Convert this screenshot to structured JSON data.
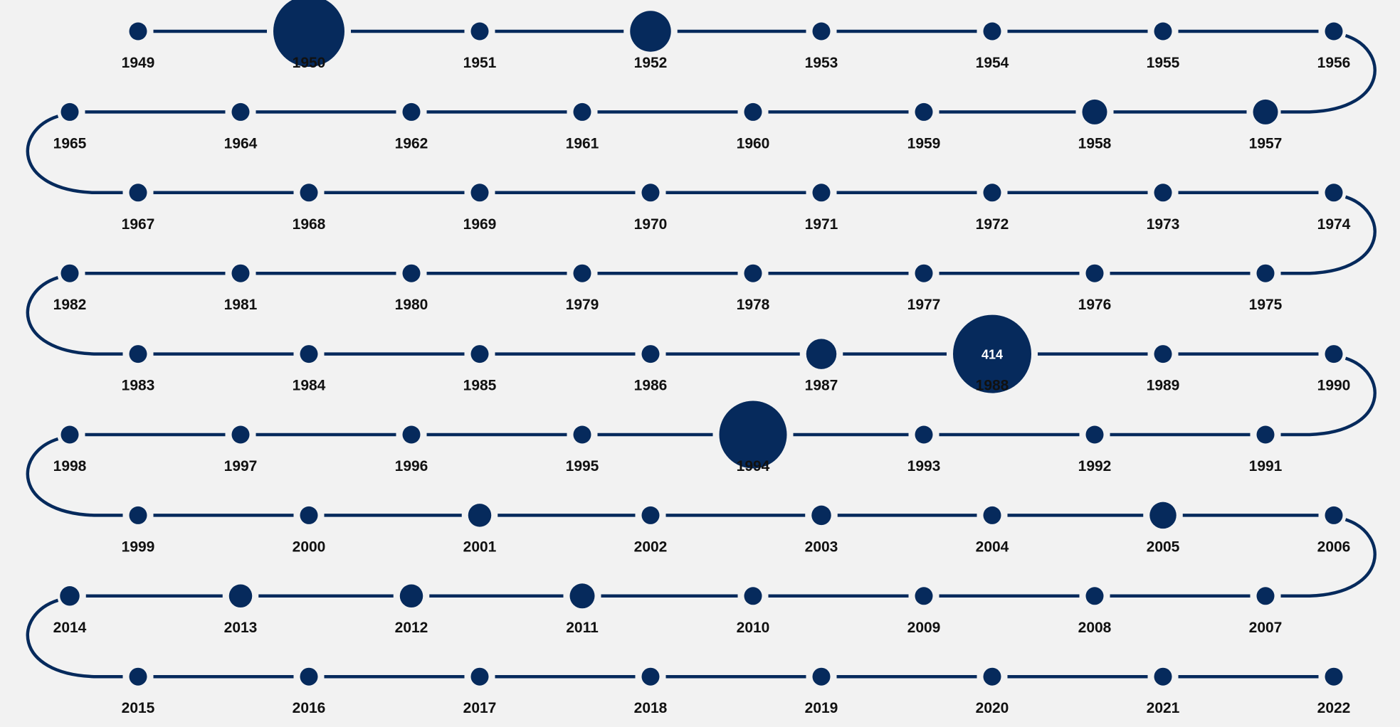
{
  "colors": {
    "background": "#f2f2f2",
    "node": "#062a5c",
    "line": "#062a5c",
    "label": "#111111",
    "value_text": "#ffffff"
  },
  "timeline": {
    "rows": [
      {
        "direction": "ltr",
        "years": [
          "1949",
          "1950",
          "1951",
          "1952",
          "1953",
          "1954",
          "1955",
          "1956"
        ]
      },
      {
        "direction": "rtl",
        "years": [
          "1965",
          "1964",
          "1962",
          "1961",
          "1960",
          "1959",
          "1958",
          "1957"
        ]
      },
      {
        "direction": "ltr",
        "years": [
          "1967",
          "1968",
          "1969",
          "1970",
          "1971",
          "1972",
          "1973",
          "1974"
        ]
      },
      {
        "direction": "rtl",
        "years": [
          "1982",
          "1981",
          "1980",
          "1979",
          "1978",
          "1977",
          "1976",
          "1975"
        ]
      },
      {
        "direction": "ltr",
        "years": [
          "1983",
          "1984",
          "1985",
          "1986",
          "1987",
          "1988",
          "1989",
          "1990"
        ]
      },
      {
        "direction": "rtl",
        "years": [
          "1998",
          "1997",
          "1996",
          "1995",
          "1994",
          "1993",
          "1992",
          "1991"
        ]
      },
      {
        "direction": "ltr",
        "years": [
          "1999",
          "2000",
          "2001",
          "2002",
          "2003",
          "2004",
          "2005",
          "2006"
        ]
      },
      {
        "direction": "rtl",
        "years": [
          "2014",
          "2013",
          "2012",
          "2011",
          "2010",
          "2009",
          "2008",
          "2007"
        ]
      },
      {
        "direction": "ltr",
        "years": [
          "2015",
          "2016",
          "2017",
          "2018",
          "2019",
          "2020",
          "2021",
          "2022"
        ]
      }
    ],
    "node_levels": {
      "1950": 4,
      "1952": 2.3,
      "1958": 1.4,
      "1957": 1.4,
      "1987": 1.7,
      "1988": 4.4,
      "1994": 3.8,
      "2001": 1.3,
      "2003": 1.1,
      "2005": 1.5,
      "2014": 1.1,
      "2013": 1.3,
      "2012": 1.3,
      "2011": 1.4
    },
    "value_labels": {
      "1988": "414"
    }
  }
}
